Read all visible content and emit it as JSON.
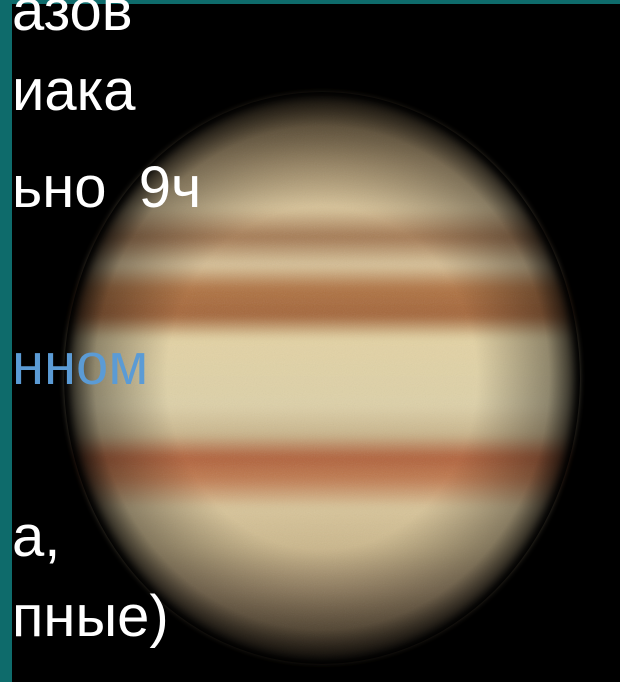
{
  "slide": {
    "lines": [
      {
        "text": "азов"
      },
      {
        "text": "иака"
      },
      {
        "text": "ьно  9ч"
      },
      {
        "text": "нном"
      },
      {
        "text": "а,"
      },
      {
        "text": "пные)"
      }
    ]
  }
}
